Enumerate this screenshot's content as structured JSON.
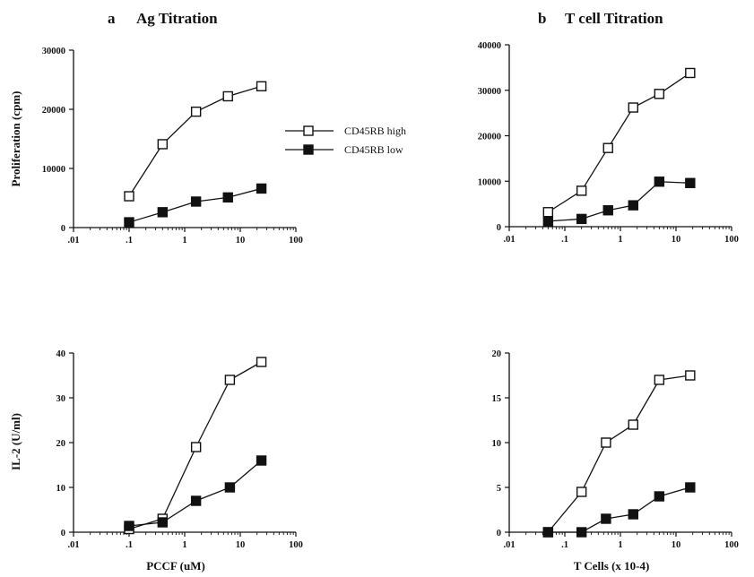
{
  "legend": {
    "series": [
      {
        "name": "CD45RB high",
        "marker": "open-square"
      },
      {
        "name": "CD45RB low",
        "marker": "filled-square"
      }
    ],
    "placement": "right of top-left panel"
  },
  "panels": {
    "a": {
      "letter": "a",
      "title": "Ag Titration",
      "xlabel": "PCCF (uM)"
    },
    "b": {
      "letter": "b",
      "title": "T cell Titration",
      "xlabel": "T Cells (x 10-4)"
    }
  },
  "chart_data": [
    {
      "type": "line",
      "panel": "a",
      "title": "",
      "xlabel": "",
      "ylabel": "Proliferation (cpm)",
      "xscale": "log",
      "xlim": [
        0.01,
        100
      ],
      "ylim": [
        0,
        30000
      ],
      "xticks": [
        ".01",
        ".1",
        "1",
        "10",
        "100"
      ],
      "yticks": [
        "0",
        "10000",
        "20000",
        "30000"
      ],
      "grid": false,
      "series": [
        {
          "name": "CD45RB high",
          "marker": "open-square",
          "x": [
            0.1,
            0.4,
            1.6,
            6,
            24
          ],
          "y": [
            5300,
            14100,
            19600,
            22200,
            23900
          ]
        },
        {
          "name": "CD45RB low",
          "marker": "filled-square",
          "x": [
            0.1,
            0.4,
            1.6,
            6,
            24
          ],
          "y": [
            900,
            2600,
            4400,
            5100,
            6600
          ]
        }
      ]
    },
    {
      "type": "line",
      "panel": "b",
      "title": "",
      "xlabel": "",
      "ylabel": "",
      "xscale": "log",
      "xlim": [
        0.01,
        100
      ],
      "ylim": [
        0,
        40000
      ],
      "xticks": [
        ".01",
        ".1",
        "1",
        "10",
        "100"
      ],
      "yticks": [
        "0",
        "10000",
        "20000",
        "30000",
        "40000"
      ],
      "grid": false,
      "series": [
        {
          "name": "CD45RB high",
          "marker": "open-square",
          "x": [
            0.05,
            0.2,
            0.6,
            1.7,
            5,
            18
          ],
          "y": [
            3200,
            7900,
            17300,
            26200,
            29200,
            33800
          ]
        },
        {
          "name": "CD45RB low",
          "marker": "filled-square",
          "x": [
            0.05,
            0.2,
            0.6,
            1.7,
            5,
            18
          ],
          "y": [
            1200,
            1700,
            3600,
            4700,
            9900,
            9600
          ]
        }
      ]
    },
    {
      "type": "line",
      "panel": "a",
      "title": "",
      "xlabel": "PCCF (uM)",
      "ylabel": "IL-2 (U/ml)",
      "xscale": "log",
      "xlim": [
        0.01,
        100
      ],
      "ylim": [
        0,
        40
      ],
      "xticks": [
        ".01",
        ".1",
        "1",
        "10",
        "100"
      ],
      "yticks": [
        "0",
        "10",
        "20",
        "30",
        "40"
      ],
      "grid": false,
      "series": [
        {
          "name": "CD45RB high",
          "marker": "open-square",
          "x": [
            0.1,
            0.4,
            1.6,
            6.5,
            24
          ],
          "y": [
            0.7,
            3,
            19,
            34,
            38
          ]
        },
        {
          "name": "CD45RB low",
          "marker": "filled-square",
          "x": [
            0.1,
            0.4,
            1.6,
            6.5,
            24
          ],
          "y": [
            1.4,
            2.2,
            7,
            10,
            16
          ]
        }
      ]
    },
    {
      "type": "line",
      "panel": "b",
      "title": "",
      "xlabel": "T Cells (x 10-4)",
      "ylabel": "",
      "xscale": "log",
      "xlim": [
        0.01,
        100
      ],
      "ylim": [
        0,
        20
      ],
      "xticks": [
        ".01",
        ".1",
        "1",
        "10",
        "100"
      ],
      "yticks": [
        "0",
        "5",
        "10",
        "15",
        "20"
      ],
      "grid": false,
      "series": [
        {
          "name": "CD45RB high",
          "marker": "open-square",
          "x": [
            0.05,
            0.2,
            0.55,
            1.7,
            5,
            18
          ],
          "y": [
            0,
            4.5,
            10,
            12,
            17,
            17.5
          ]
        },
        {
          "name": "CD45RB low",
          "marker": "filled-square",
          "x": [
            0.05,
            0.2,
            0.55,
            1.7,
            5,
            18
          ],
          "y": [
            0,
            0,
            1.5,
            2,
            4,
            5
          ]
        }
      ]
    }
  ]
}
